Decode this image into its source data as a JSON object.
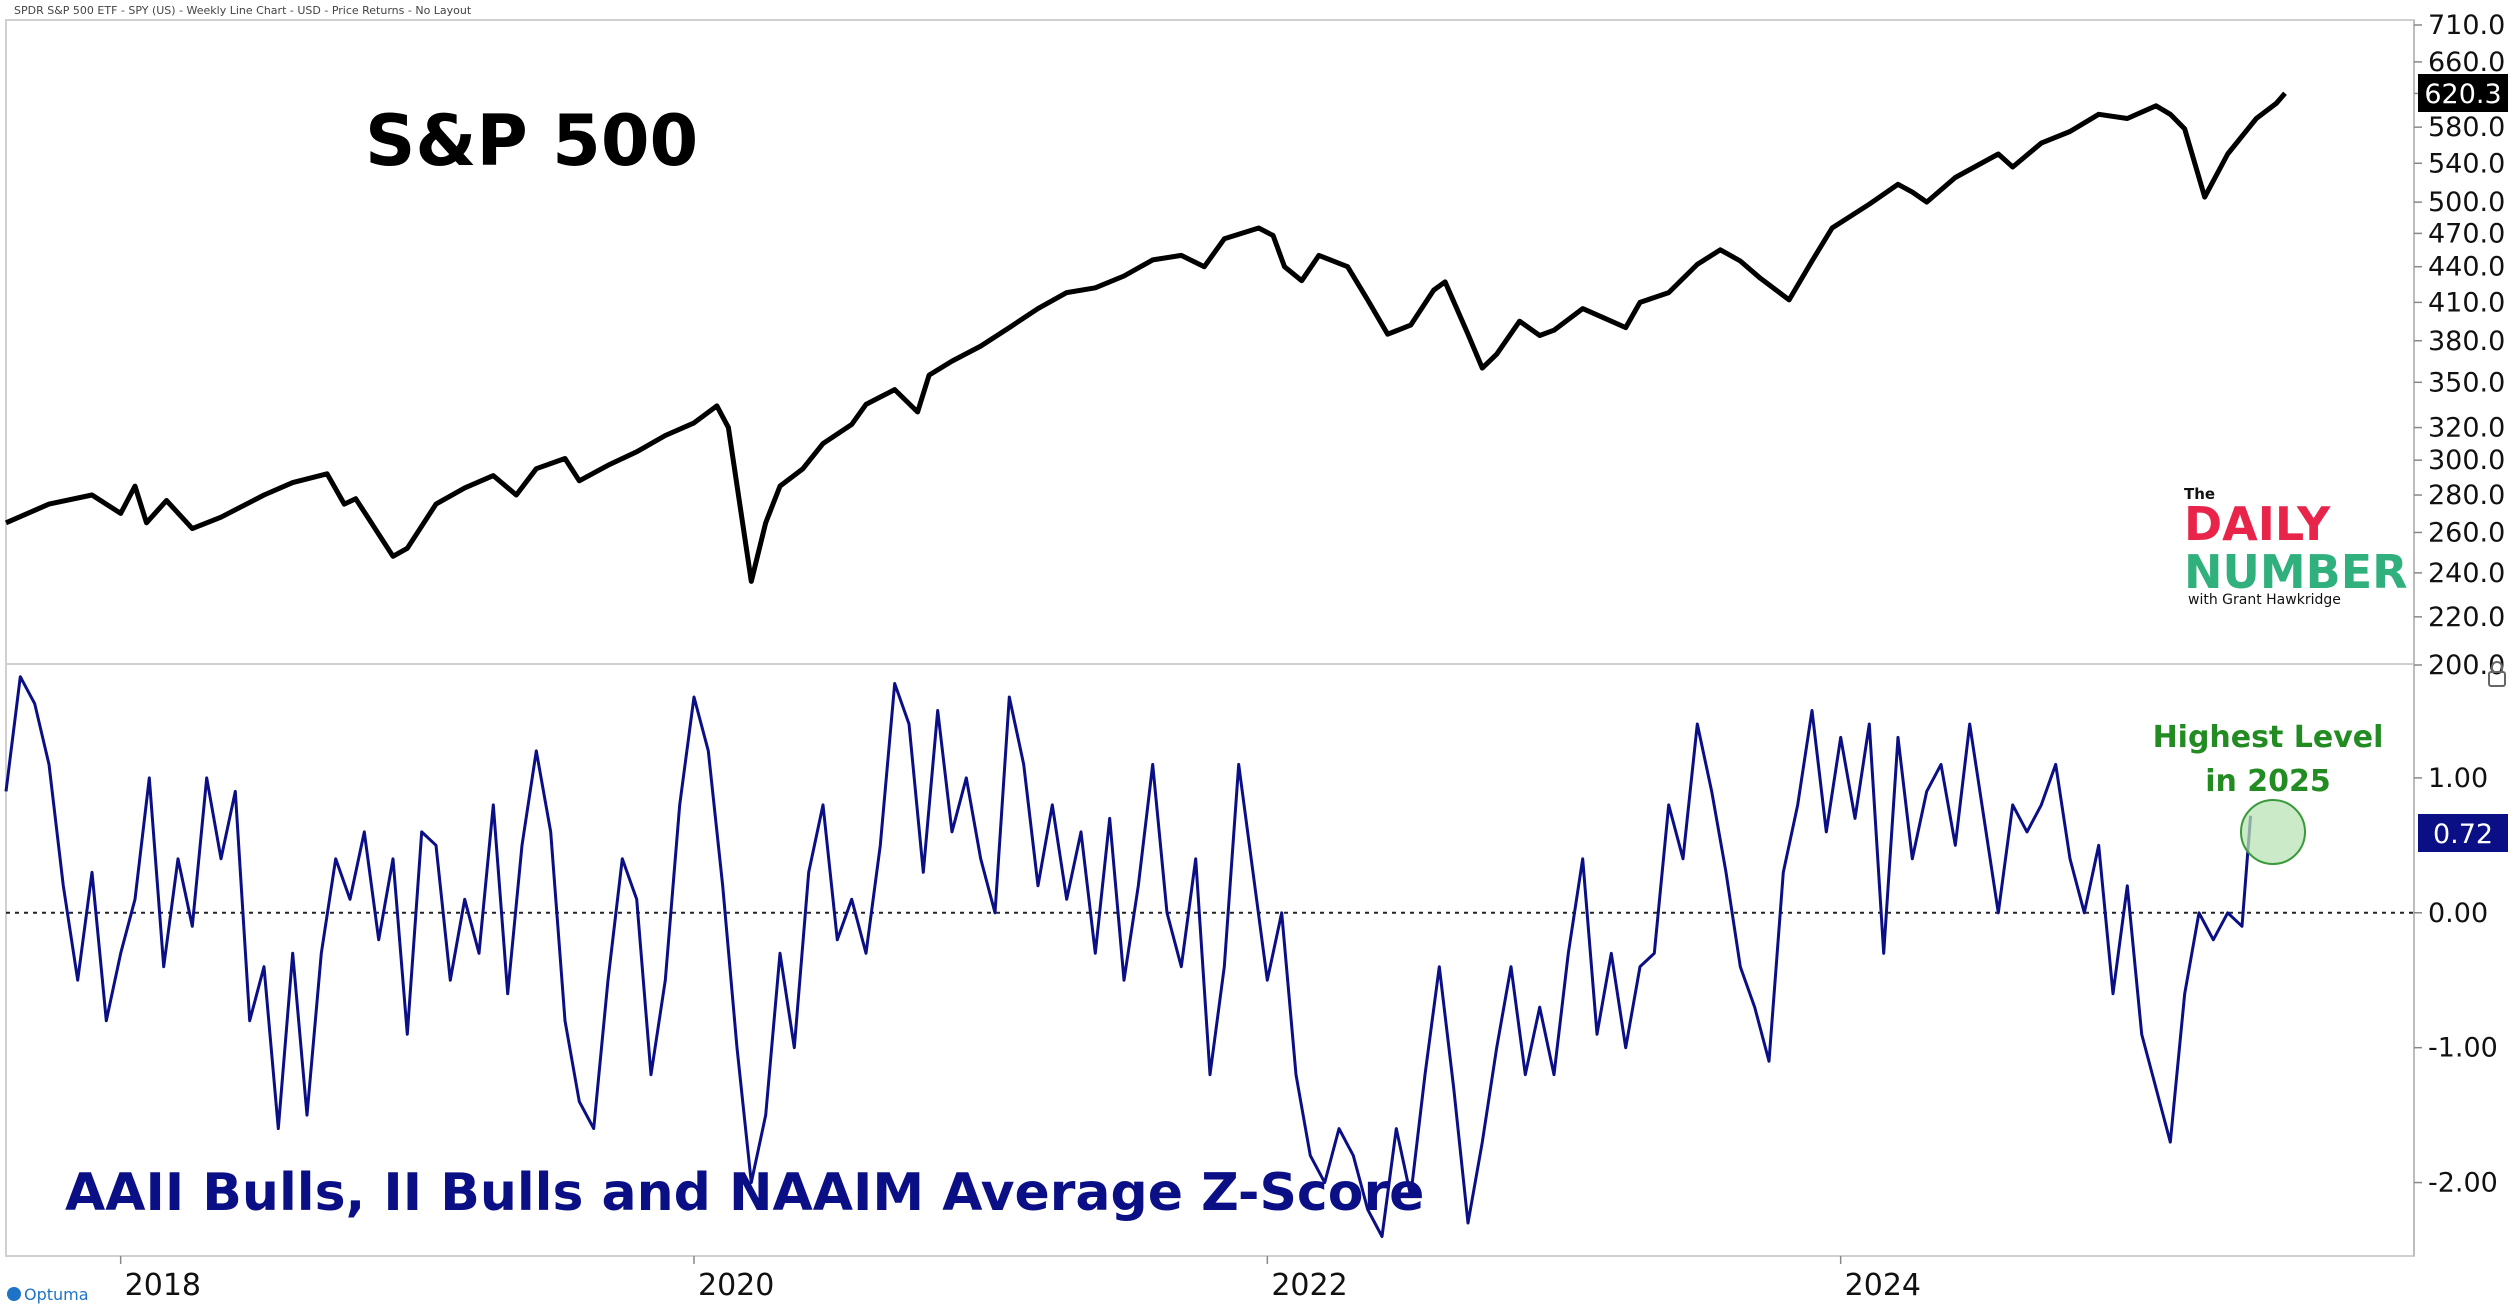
{
  "header": {
    "chart_info": "SPDR S&P 500 ETF - SPY (US) - Weekly Line Chart - USD - Price Returns - No Layout"
  },
  "branding": {
    "the": "The",
    "daily": "DAILY",
    "number": "NUMBER",
    "byline": "with Grant Hawkridge",
    "vendor": "Optuma"
  },
  "colors": {
    "price_line": "#000000",
    "zscore_line": "#0b0f86",
    "title_bottom": "#0b0f86",
    "annotation": "#228b22",
    "logo_red": "#e8244a",
    "logo_green": "#2fb07d"
  },
  "chart_data": [
    {
      "type": "line",
      "title": "S&P 500",
      "series": [
        {
          "values": [
            [
              2017.6,
              265
            ],
            [
              2017.75,
              275
            ],
            [
              2017.9,
              280
            ],
            [
              2018.0,
              270
            ],
            [
              2018.05,
              285
            ],
            [
              2018.09,
              265
            ],
            [
              2018.16,
              277
            ],
            [
              2018.25,
              262
            ],
            [
              2018.35,
              268
            ],
            [
              2018.5,
              280
            ],
            [
              2018.6,
              287
            ],
            [
              2018.72,
              292
            ],
            [
              2018.78,
              275
            ],
            [
              2018.82,
              278
            ],
            [
              2018.87,
              266
            ],
            [
              2018.95,
              248
            ],
            [
              2019.0,
              252
            ],
            [
              2019.1,
              275
            ],
            [
              2019.2,
              284
            ],
            [
              2019.3,
              291
            ],
            [
              2019.38,
              280
            ],
            [
              2019.45,
              295
            ],
            [
              2019.55,
              301
            ],
            [
              2019.6,
              288
            ],
            [
              2019.7,
              297
            ],
            [
              2019.8,
              305
            ],
            [
              2019.9,
              315
            ],
            [
              2020.0,
              323
            ],
            [
              2020.08,
              334
            ],
            [
              2020.12,
              320
            ],
            [
              2020.2,
              236
            ],
            [
              2020.25,
              265
            ],
            [
              2020.3,
              285
            ],
            [
              2020.38,
              295
            ],
            [
              2020.45,
              310
            ],
            [
              2020.55,
              322
            ],
            [
              2020.6,
              335
            ],
            [
              2020.65,
              340
            ],
            [
              2020.7,
              345
            ],
            [
              2020.78,
              330
            ],
            [
              2020.82,
              355
            ],
            [
              2020.9,
              365
            ],
            [
              2021.0,
              376
            ],
            [
              2021.1,
              390
            ],
            [
              2021.2,
              405
            ],
            [
              2021.3,
              418
            ],
            [
              2021.4,
              422
            ],
            [
              2021.5,
              432
            ],
            [
              2021.6,
              446
            ],
            [
              2021.7,
              450
            ],
            [
              2021.78,
              440
            ],
            [
              2021.85,
              465
            ],
            [
              2021.97,
              475
            ],
            [
              2022.02,
              468
            ],
            [
              2022.06,
              440
            ],
            [
              2022.12,
              428
            ],
            [
              2022.18,
              450
            ],
            [
              2022.28,
              440
            ],
            [
              2022.35,
              412
            ],
            [
              2022.42,
              385
            ],
            [
              2022.5,
              392
            ],
            [
              2022.58,
              420
            ],
            [
              2022.62,
              427
            ],
            [
              2022.7,
              385
            ],
            [
              2022.75,
              360
            ],
            [
              2022.8,
              370
            ],
            [
              2022.88,
              395
            ],
            [
              2022.95,
              384
            ],
            [
              2023.0,
              388
            ],
            [
              2023.1,
              405
            ],
            [
              2023.2,
              395
            ],
            [
              2023.25,
              390
            ],
            [
              2023.3,
              410
            ],
            [
              2023.4,
              418
            ],
            [
              2023.5,
              442
            ],
            [
              2023.58,
              455
            ],
            [
              2023.65,
              445
            ],
            [
              2023.72,
              430
            ],
            [
              2023.82,
              412
            ],
            [
              2023.9,
              445
            ],
            [
              2023.97,
              475
            ],
            [
              2024.1,
              498
            ],
            [
              2024.2,
              518
            ],
            [
              2024.25,
              510
            ],
            [
              2024.3,
              500
            ],
            [
              2024.4,
              525
            ],
            [
              2024.55,
              550
            ],
            [
              2024.6,
              536
            ],
            [
              2024.7,
              562
            ],
            [
              2024.8,
              575
            ],
            [
              2024.9,
              595
            ],
            [
              2025.0,
              590
            ],
            [
              2025.1,
              605
            ],
            [
              2025.15,
              595
            ],
            [
              2025.2,
              578
            ],
            [
              2025.27,
              505
            ],
            [
              2025.35,
              550
            ],
            [
              2025.45,
              590
            ],
            [
              2025.52,
              608
            ],
            [
              2025.55,
              620.3
            ]
          ]
        }
      ],
      "last_value_label": "620.3",
      "ylim": [
        200,
        710
      ],
      "yscale": "log",
      "yticks": [
        "710.0",
        "660.0",
        "620.0",
        "580.0",
        "540.0",
        "500.0",
        "470.0",
        "440.0",
        "410.0",
        "380.0",
        "350.0",
        "320.0",
        "300.0",
        "280.0",
        "260.0",
        "240.0",
        "220.0",
        "200.0"
      ]
    },
    {
      "type": "line",
      "title": "AAII Bulls, II Bulls and NAAIM Average Z-Score",
      "series": [
        {
          "values": [
            [
              2017.6,
              0.9
            ],
            [
              2017.65,
              1.75
            ],
            [
              2017.7,
              1.55
            ],
            [
              2017.75,
              1.1
            ],
            [
              2017.8,
              0.2
            ],
            [
              2017.85,
              -0.5
            ],
            [
              2017.9,
              0.3
            ],
            [
              2017.95,
              -0.8
            ],
            [
              2018.0,
              -0.3
            ],
            [
              2018.05,
              0.1
            ],
            [
              2018.1,
              1.0
            ],
            [
              2018.15,
              -0.4
            ],
            [
              2018.2,
              0.4
            ],
            [
              2018.25,
              -0.1
            ],
            [
              2018.3,
              1.0
            ],
            [
              2018.35,
              0.4
            ],
            [
              2018.4,
              0.9
            ],
            [
              2018.45,
              -0.8
            ],
            [
              2018.5,
              -0.4
            ],
            [
              2018.55,
              -1.6
            ],
            [
              2018.6,
              -0.3
            ],
            [
              2018.65,
              -1.5
            ],
            [
              2018.7,
              -0.3
            ],
            [
              2018.75,
              0.4
            ],
            [
              2018.8,
              0.1
            ],
            [
              2018.85,
              0.6
            ],
            [
              2018.9,
              -0.2
            ],
            [
              2018.95,
              0.4
            ],
            [
              2019.0,
              -0.9
            ],
            [
              2019.05,
              0.6
            ],
            [
              2019.1,
              0.5
            ],
            [
              2019.15,
              -0.5
            ],
            [
              2019.2,
              0.1
            ],
            [
              2019.25,
              -0.3
            ],
            [
              2019.3,
              0.8
            ],
            [
              2019.35,
              -0.6
            ],
            [
              2019.4,
              0.5
            ],
            [
              2019.45,
              1.2
            ],
            [
              2019.5,
              0.6
            ],
            [
              2019.55,
              -0.8
            ],
            [
              2019.6,
              -1.4
            ],
            [
              2019.65,
              -1.6
            ],
            [
              2019.7,
              -0.5
            ],
            [
              2019.75,
              0.4
            ],
            [
              2019.8,
              0.1
            ],
            [
              2019.85,
              -1.2
            ],
            [
              2019.9,
              -0.5
            ],
            [
              2019.95,
              0.8
            ],
            [
              2020.0,
              1.6
            ],
            [
              2020.05,
              1.2
            ],
            [
              2020.1,
              0.2
            ],
            [
              2020.15,
              -1.0
            ],
            [
              2020.2,
              -2.0
            ],
            [
              2020.25,
              -1.5
            ],
            [
              2020.3,
              -0.3
            ],
            [
              2020.35,
              -1.0
            ],
            [
              2020.4,
              0.3
            ],
            [
              2020.45,
              0.8
            ],
            [
              2020.5,
              -0.2
            ],
            [
              2020.55,
              0.1
            ],
            [
              2020.6,
              -0.3
            ],
            [
              2020.65,
              0.5
            ],
            [
              2020.7,
              1.7
            ],
            [
              2020.75,
              1.4
            ],
            [
              2020.8,
              0.3
            ],
            [
              2020.85,
              1.5
            ],
            [
              2020.9,
              0.6
            ],
            [
              2020.95,
              1.0
            ],
            [
              2021.0,
              0.4
            ],
            [
              2021.05,
              0.0
            ],
            [
              2021.1,
              1.6
            ],
            [
              2021.15,
              1.1
            ],
            [
              2021.2,
              0.2
            ],
            [
              2021.25,
              0.8
            ],
            [
              2021.3,
              0.1
            ],
            [
              2021.35,
              0.6
            ],
            [
              2021.4,
              -0.3
            ],
            [
              2021.45,
              0.7
            ],
            [
              2021.5,
              -0.5
            ],
            [
              2021.55,
              0.2
            ],
            [
              2021.6,
              1.1
            ],
            [
              2021.65,
              0.0
            ],
            [
              2021.7,
              -0.4
            ],
            [
              2021.75,
              0.4
            ],
            [
              2021.8,
              -1.2
            ],
            [
              2021.85,
              -0.4
            ],
            [
              2021.9,
              1.1
            ],
            [
              2021.95,
              0.3
            ],
            [
              2022.0,
              -0.5
            ],
            [
              2022.05,
              0.0
            ],
            [
              2022.1,
              -1.2
            ],
            [
              2022.15,
              -1.8
            ],
            [
              2022.2,
              -2.0
            ],
            [
              2022.25,
              -1.6
            ],
            [
              2022.3,
              -1.8
            ],
            [
              2022.35,
              -2.2
            ],
            [
              2022.4,
              -2.4
            ],
            [
              2022.45,
              -1.6
            ],
            [
              2022.5,
              -2.1
            ],
            [
              2022.55,
              -1.2
            ],
            [
              2022.6,
              -0.4
            ],
            [
              2022.65,
              -1.3
            ],
            [
              2022.7,
              -2.3
            ],
            [
              2022.75,
              -1.7
            ],
            [
              2022.8,
              -1.0
            ],
            [
              2022.85,
              -0.4
            ],
            [
              2022.9,
              -1.2
            ],
            [
              2022.95,
              -0.7
            ],
            [
              2023.0,
              -1.2
            ],
            [
              2023.05,
              -0.3
            ],
            [
              2023.1,
              0.4
            ],
            [
              2023.15,
              -0.9
            ],
            [
              2023.2,
              -0.3
            ],
            [
              2023.25,
              -1.0
            ],
            [
              2023.3,
              -0.4
            ],
            [
              2023.35,
              -0.3
            ],
            [
              2023.4,
              0.8
            ],
            [
              2023.45,
              0.4
            ],
            [
              2023.5,
              1.4
            ],
            [
              2023.55,
              0.9
            ],
            [
              2023.6,
              0.3
            ],
            [
              2023.65,
              -0.4
            ],
            [
              2023.7,
              -0.7
            ],
            [
              2023.75,
              -1.1
            ],
            [
              2023.8,
              0.3
            ],
            [
              2023.85,
              0.8
            ],
            [
              2023.9,
              1.5
            ],
            [
              2023.95,
              0.6
            ],
            [
              2024.0,
              1.3
            ],
            [
              2024.05,
              0.7
            ],
            [
              2024.1,
              1.4
            ],
            [
              2024.15,
              -0.3
            ],
            [
              2024.2,
              1.3
            ],
            [
              2024.25,
              0.4
            ],
            [
              2024.3,
              0.9
            ],
            [
              2024.35,
              1.1
            ],
            [
              2024.4,
              0.5
            ],
            [
              2024.45,
              1.4
            ],
            [
              2024.5,
              0.7
            ],
            [
              2024.55,
              0.0
            ],
            [
              2024.6,
              0.8
            ],
            [
              2024.65,
              0.6
            ],
            [
              2024.7,
              0.8
            ],
            [
              2024.75,
              1.1
            ],
            [
              2024.8,
              0.4
            ],
            [
              2024.85,
              0.0
            ],
            [
              2024.9,
              0.5
            ],
            [
              2024.95,
              -0.6
            ],
            [
              2025.0,
              0.2
            ],
            [
              2025.05,
              -0.9
            ],
            [
              2025.1,
              -1.3
            ],
            [
              2025.15,
              -1.7
            ],
            [
              2025.2,
              -0.6
            ],
            [
              2025.25,
              0.0
            ],
            [
              2025.3,
              -0.2
            ],
            [
              2025.35,
              0.0
            ],
            [
              2025.4,
              -0.1
            ],
            [
              2025.43,
              0.72
            ]
          ]
        }
      ],
      "last_value_label": "0.72",
      "ylim": [
        -2.5,
        1.8
      ],
      "yticks": [
        "1.00",
        "0.00",
        "-1.00",
        "-2.00"
      ],
      "reference_line": 0,
      "annotation": {
        "line1": "Highest Level",
        "line2": "in 2025"
      }
    }
  ],
  "x_axis": {
    "ticks": [
      "2018",
      "2020",
      "2022",
      "2024"
    ]
  }
}
